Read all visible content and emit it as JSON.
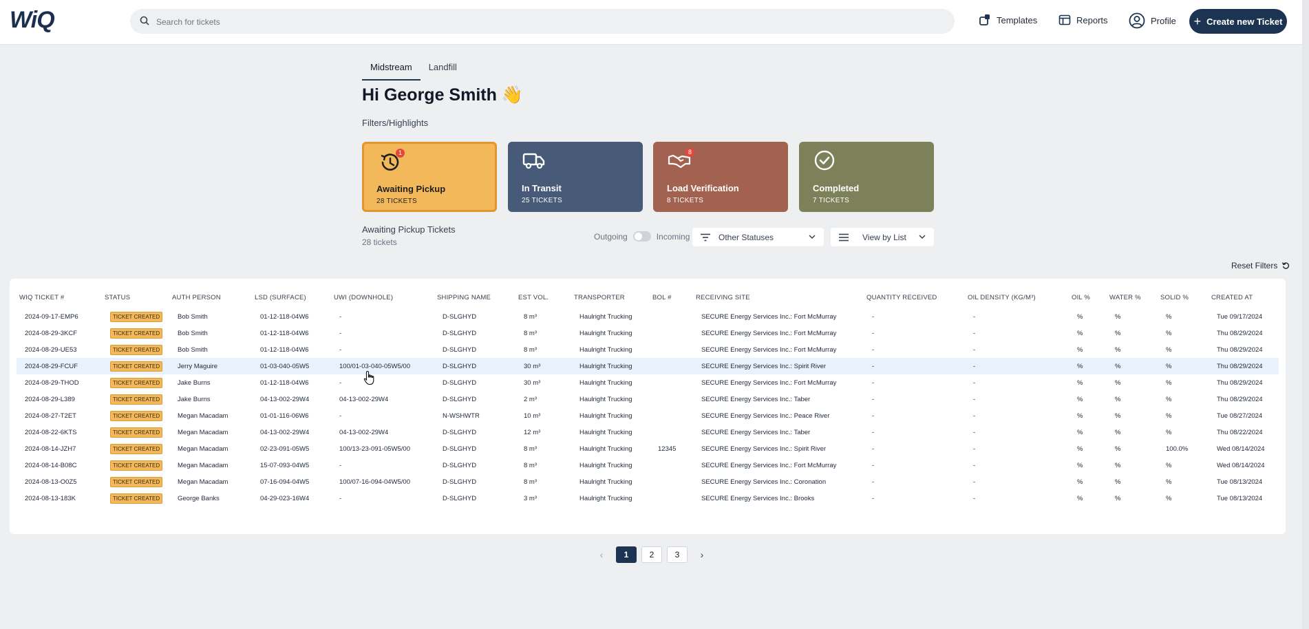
{
  "header": {
    "logo": "WiQ",
    "search_placeholder": "Search for tickets",
    "nav": {
      "templates": "Templates",
      "reports": "Reports",
      "profile": "Profile"
    },
    "create_button": "Create new Ticket"
  },
  "tabs": [
    {
      "label": "Midstream",
      "active": true
    },
    {
      "label": "Landfill",
      "active": false
    }
  ],
  "greeting": "Hi George Smith 👋",
  "filters_label": "Filters/Highlights",
  "cards": [
    {
      "title": "Awaiting Pickup",
      "count": "28 TICKETS",
      "badge": "1",
      "icon": "clock-history-icon"
    },
    {
      "title": "In Transit",
      "count": "25 TICKETS",
      "badge": "",
      "icon": "truck-icon"
    },
    {
      "title": "Load Verification",
      "count": "8 TICKETS",
      "badge": "8",
      "icon": "handshake-icon"
    },
    {
      "title": "Completed",
      "count": "7 TICKETS",
      "badge": "",
      "icon": "check-circle-icon"
    }
  ],
  "list": {
    "title": "Awaiting Pickup Tickets",
    "count": "28 tickets"
  },
  "toggle": {
    "left": "Outgoing",
    "right": "Incoming"
  },
  "status_dropdown": "Other Statuses",
  "view_dropdown": "View by List",
  "reset_filters": "Reset Filters",
  "table": {
    "headers": [
      "WIQ TICKET #",
      "STATUS",
      "AUTH PERSON",
      "LSD (SURFACE)",
      "UWI (DOWNHOLE)",
      "SHIPPING NAME",
      "EST VOL.",
      "TRANSPORTER",
      "BOL #",
      "RECEIVING SITE",
      "QUANTITY RECEIVED",
      "OIL DENSITY (KG/M³)",
      "OIL %",
      "WATER %",
      "SOLID %",
      "CREATED AT"
    ],
    "rows": [
      [
        "2024-09-17-EMP6",
        "TICKET CREATED",
        "Bob Smith",
        "01-12-118-04W6",
        "-",
        "D-SLGHYD",
        "8 m³",
        "Haulright Trucking",
        "",
        "SECURE Energy Services Inc.: Fort McMurray",
        "-",
        "-",
        "%",
        "%",
        "%",
        "Tue 09/17/2024"
      ],
      [
        "2024-08-29-3KCF",
        "TICKET CREATED",
        "Bob Smith",
        "01-12-118-04W6",
        "-",
        "D-SLGHYD",
        "8 m³",
        "Haulright Trucking",
        "",
        "SECURE Energy Services Inc.: Fort McMurray",
        "-",
        "-",
        "%",
        "%",
        "%",
        "Thu 08/29/2024"
      ],
      [
        "2024-08-29-UE53",
        "TICKET CREATED",
        "Bob Smith",
        "01-12-118-04W6",
        "-",
        "D-SLGHYD",
        "8 m³",
        "Haulright Trucking",
        "",
        "SECURE Energy Services Inc.: Fort McMurray",
        "-",
        "-",
        "%",
        "%",
        "%",
        "Thu 08/29/2024"
      ],
      [
        "2024-08-29-FCUF",
        "TICKET CREATED",
        "Jerry Maguire",
        "01-03-040-05W5",
        "100/01-03-040-05W5/00",
        "D-SLGHYD",
        "30 m³",
        "Haulright Trucking",
        "",
        "SECURE Energy Services Inc.: Spirit River",
        "-",
        "-",
        "%",
        "%",
        "%",
        "Thu 08/29/2024"
      ],
      [
        "2024-08-29-THOD",
        "TICKET CREATED",
        "Jake Burns",
        "01-12-118-04W6",
        "-",
        "D-SLGHYD",
        "30 m³",
        "Haulright Trucking",
        "",
        "SECURE Energy Services Inc.: Fort McMurray",
        "-",
        "-",
        "%",
        "%",
        "%",
        "Thu 08/29/2024"
      ],
      [
        "2024-08-29-L389",
        "TICKET CREATED",
        "Jake Burns",
        "04-13-002-29W4",
        "04-13-002-29W4",
        "D-SLGHYD",
        "2 m³",
        "Haulright Trucking",
        "",
        "SECURE Energy Services Inc.: Taber",
        "-",
        "-",
        "%",
        "%",
        "%",
        "Thu 08/29/2024"
      ],
      [
        "2024-08-27-T2ET",
        "TICKET CREATED",
        "Megan Macadam",
        "01-01-116-06W6",
        "-",
        "N-WSHWTR",
        "10 m³",
        "Haulright Trucking",
        "",
        "SECURE Energy Services Inc.: Peace River",
        "-",
        "-",
        "%",
        "%",
        "%",
        "Tue 08/27/2024"
      ],
      [
        "2024-08-22-6KTS",
        "TICKET CREATED",
        "Megan Macadam",
        "04-13-002-29W4",
        "04-13-002-29W4",
        "D-SLGHYD",
        "12 m³",
        "Haulright Trucking",
        "",
        "SECURE Energy Services Inc.: Taber",
        "-",
        "-",
        "%",
        "%",
        "%",
        "Thu 08/22/2024"
      ],
      [
        "2024-08-14-JZH7",
        "TICKET CREATED",
        "Megan Macadam",
        "02-23-091-05W5",
        "100/13-23-091-05W5/00",
        "D-SLGHYD",
        "8 m³",
        "Haulright Trucking",
        "12345",
        "SECURE Energy Services Inc.: Spirit River",
        "-",
        "-",
        "%",
        "%",
        "100.0%",
        "Wed 08/14/2024"
      ],
      [
        "2024-08-14-B08C",
        "TICKET CREATED",
        "Megan Macadam",
        "15-07-093-04W5",
        "-",
        "D-SLGHYD",
        "8 m³",
        "Haulright Trucking",
        "",
        "SECURE Energy Services Inc.: Fort McMurray",
        "-",
        "-",
        "%",
        "%",
        "%",
        "Wed 08/14/2024"
      ],
      [
        "2024-08-13-O0Z5",
        "TICKET CREATED",
        "Megan Macadam",
        "07-16-094-04W5",
        "100/07-16-094-04W5/00",
        "D-SLGHYD",
        "8 m³",
        "Haulright Trucking",
        "",
        "SECURE Energy Services Inc.: Coronation",
        "-",
        "-",
        "%",
        "%",
        "%",
        "Tue 08/13/2024"
      ],
      [
        "2024-08-13-183K",
        "TICKET CREATED",
        "George Banks",
        "04-29-023-16W4",
        "-",
        "D-SLGHYD",
        "3 m³",
        "Haulright Trucking",
        "",
        "SECURE Energy Services Inc.: Brooks",
        "-",
        "-",
        "%",
        "%",
        "%",
        "Tue 08/13/2024"
      ]
    ]
  },
  "pagination": {
    "pages": [
      "1",
      "2",
      "3"
    ],
    "current": "1"
  }
}
